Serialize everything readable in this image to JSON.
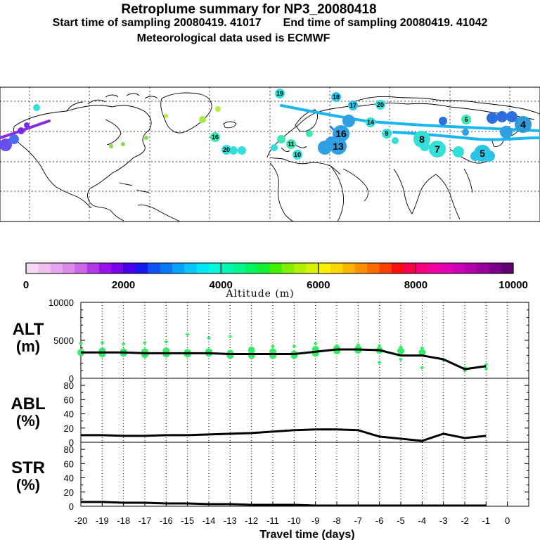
{
  "header": {
    "title": "Retroplume summary for NP3_20080418",
    "start_label": "Start time of sampling 20080419. 41017",
    "end_label": "End time of sampling 20080419. 41042",
    "met_label": "Meteorological data used is ECMWF"
  },
  "colorbar": {
    "ticks": [
      "0",
      "2000",
      "4000",
      "6000",
      "8000",
      "10000"
    ],
    "title": "Altitude (m)",
    "colors": [
      "#f6d8f6",
      "#eec0ee",
      "#e6a6ee",
      "#dc8aec",
      "#cc66e8",
      "#b438e6",
      "#9a10e8",
      "#7a00ee",
      "#4a00f0",
      "#1818f0",
      "#1050f4",
      "#0a78f6",
      "#08a0f8",
      "#08c4f8",
      "#00e4f4",
      "#00f8dc",
      "#00f8b4",
      "#00f888",
      "#00f460",
      "#10f030",
      "#40f000",
      "#80f000",
      "#b0f000",
      "#d8f000",
      "#f8f000",
      "#f8d800",
      "#f8b400",
      "#f89000",
      "#f86c00",
      "#f84000",
      "#f81010",
      "#f8004c",
      "#f80080",
      "#f000a0",
      "#e000b0",
      "#cc00b4",
      "#b400a8",
      "#98009a",
      "#7c0088",
      "#600070"
    ]
  },
  "map": {
    "labels": [
      {
        "t": "19",
        "c": "#33dfd9",
        "big": false
      },
      {
        "t": "18",
        "c": "#2ac5e6",
        "big": false
      },
      {
        "t": "17",
        "c": "#2ac5e6",
        "big": false
      },
      {
        "t": "20",
        "c": "#33dfd9",
        "big": false
      },
      {
        "t": "16",
        "c": "#2fa0e4",
        "big": true
      },
      {
        "t": "13",
        "c": "#2fa0e4",
        "big": true
      },
      {
        "t": "9",
        "c": "#33dfd9",
        "big": false
      },
      {
        "t": "8",
        "c": "#33dfd9",
        "big": true
      },
      {
        "t": "7",
        "c": "#33dfd9",
        "big": true
      },
      {
        "t": "6",
        "c": "#3be8b4",
        "big": false
      },
      {
        "t": "4",
        "c": "#2f9ad8",
        "big": true
      },
      {
        "t": "5",
        "c": "#2ac5e6",
        "big": true
      },
      {
        "t": "16",
        "c": "#3be8b4",
        "big": false
      },
      {
        "t": "20",
        "c": "#33dfd9",
        "big": false
      },
      {
        "t": "11",
        "c": "#3be8b4",
        "big": false
      },
      {
        "t": "10",
        "c": "#33dfd9",
        "big": false
      },
      {
        "t": "14",
        "c": "#33dfd9",
        "big": false
      }
    ]
  },
  "chart_data": [
    {
      "type": "scatter",
      "title": "ALT (m)",
      "label_top": "ALT",
      "label_bottom": "(m)",
      "ylim": [
        0,
        10000
      ],
      "yticks": [
        "10000",
        "5000",
        "0"
      ],
      "line": {
        "x": [
          -20,
          -19,
          -18,
          -17,
          -16,
          -15,
          -14,
          -13,
          -12,
          -11,
          -10,
          -9,
          -8,
          -7,
          -6,
          -5,
          -4,
          -3,
          -2,
          -1
        ],
        "y": [
          3400,
          3400,
          3400,
          3300,
          3300,
          3300,
          3300,
          3200,
          3200,
          3200,
          3200,
          3500,
          3800,
          3800,
          3700,
          3000,
          3000,
          2500,
          1200,
          1600
        ]
      },
      "points": {
        "x": [
          -20,
          -20,
          -19,
          -19,
          -19,
          -18,
          -18,
          -18,
          -17,
          -17,
          -17,
          -16,
          -16,
          -16,
          -15,
          -15,
          -15,
          -14,
          -14,
          -14,
          -13,
          -13,
          -13,
          -12,
          -12,
          -12,
          -11,
          -11,
          -11,
          -10,
          -10,
          -10,
          -9,
          -9,
          -9,
          -8,
          -8,
          -8,
          -7,
          -7,
          -7,
          -6,
          -6,
          -6,
          -5,
          -5,
          -5,
          -4,
          -4,
          -4,
          -3,
          -2,
          -2,
          -1,
          -1
        ],
        "y": [
          3400,
          4600,
          3200,
          4700,
          3600,
          3300,
          4500,
          3500,
          3100,
          4700,
          3500,
          3200,
          4800,
          3600,
          3200,
          5800,
          3400,
          3300,
          5300,
          3500,
          3000,
          5500,
          3300,
          3000,
          3700,
          4000,
          3000,
          4200,
          3500,
          3200,
          4200,
          3000,
          3300,
          4600,
          3800,
          3600,
          4300,
          3900,
          3700,
          4400,
          3900,
          3700,
          4300,
          2100,
          3600,
          4100,
          2500,
          3400,
          4000,
          1400,
          2400,
          1000,
          1400,
          1300,
          1800
        ]
      },
      "xticks": [
        "-20",
        "-19",
        "-18",
        "-17",
        "-16",
        "-15",
        "-14",
        "-13",
        "-12",
        "-11",
        "-10",
        "-9",
        "-8",
        "-7",
        "-6",
        "-5",
        "-4",
        "-3",
        "-2",
        "-1",
        "0"
      ]
    },
    {
      "type": "line",
      "title": "ABL (%)",
      "label_top": "ABL",
      "label_bottom": "(%)",
      "ylim": [
        0,
        90
      ],
      "yticks": [
        "80",
        "60",
        "40",
        "20",
        "0"
      ],
      "x": [
        -20,
        -19,
        -18,
        -17,
        -16,
        -15,
        -14,
        -13,
        -12,
        -11,
        -10,
        -9,
        -8,
        -7,
        -6,
        -5,
        -4,
        -3,
        -2,
        -1
      ],
      "y": [
        10,
        10,
        9,
        9,
        10,
        10,
        11,
        12,
        13,
        15,
        17,
        18,
        18,
        17,
        8,
        5,
        2,
        12,
        6,
        9
      ]
    },
    {
      "type": "line",
      "title": "STR (%)",
      "label_top": "STR",
      "label_bottom": "(%)",
      "ylim": [
        0,
        90
      ],
      "yticks": [
        "80",
        "60",
        "40",
        "20",
        "0"
      ],
      "x": [
        -20,
        -19,
        -18,
        -17,
        -16,
        -15,
        -14,
        -13,
        -12,
        -11,
        -10,
        -9,
        -8,
        -7,
        -6,
        -5,
        -4,
        -3,
        -2,
        -1
      ],
      "y": [
        6,
        6,
        5,
        5,
        4,
        4,
        3,
        3,
        2,
        2,
        2,
        1,
        1,
        1,
        1,
        1,
        1,
        1,
        1,
        1
      ]
    }
  ],
  "xaxis": {
    "label": "Travel time (days)"
  }
}
